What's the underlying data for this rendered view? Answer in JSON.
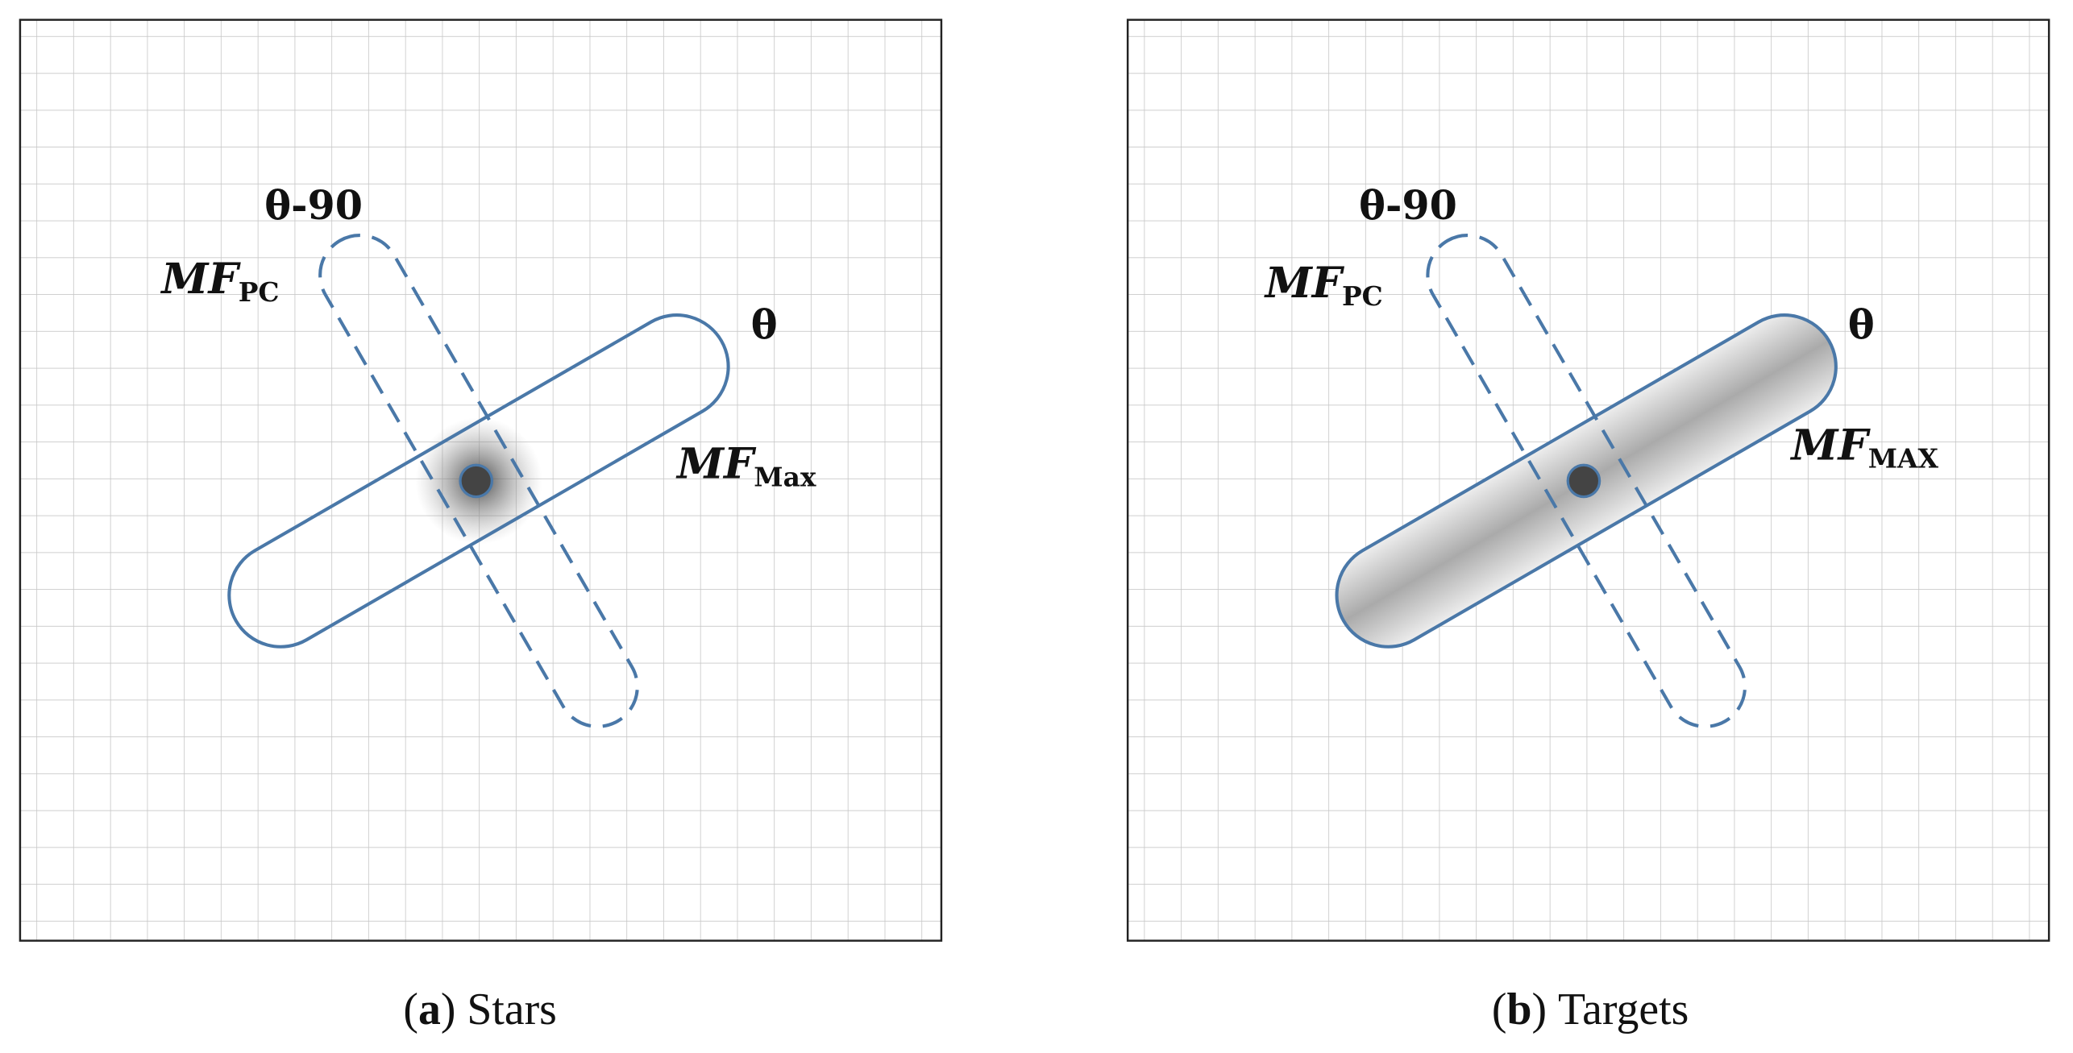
{
  "colors": {
    "outline": "#4a78a8",
    "grid": "#c8c8c8",
    "dot": "#444444"
  },
  "panels": [
    {
      "id": "a",
      "angle_label": "θ",
      "perp_label": "θ-90",
      "mf_pc": "MF",
      "mf_pc_sub": "PC",
      "mf_max": "MF",
      "mf_max_sub": "Max",
      "caption_letter": "a",
      "caption_text": "Stars"
    },
    {
      "id": "b",
      "angle_label": "θ",
      "perp_label": "θ-90",
      "mf_pc": "MF",
      "mf_pc_sub": "PC",
      "mf_max": "MF",
      "mf_max_sub": "MAX",
      "caption_letter": "b",
      "caption_text": "Targets"
    }
  ]
}
